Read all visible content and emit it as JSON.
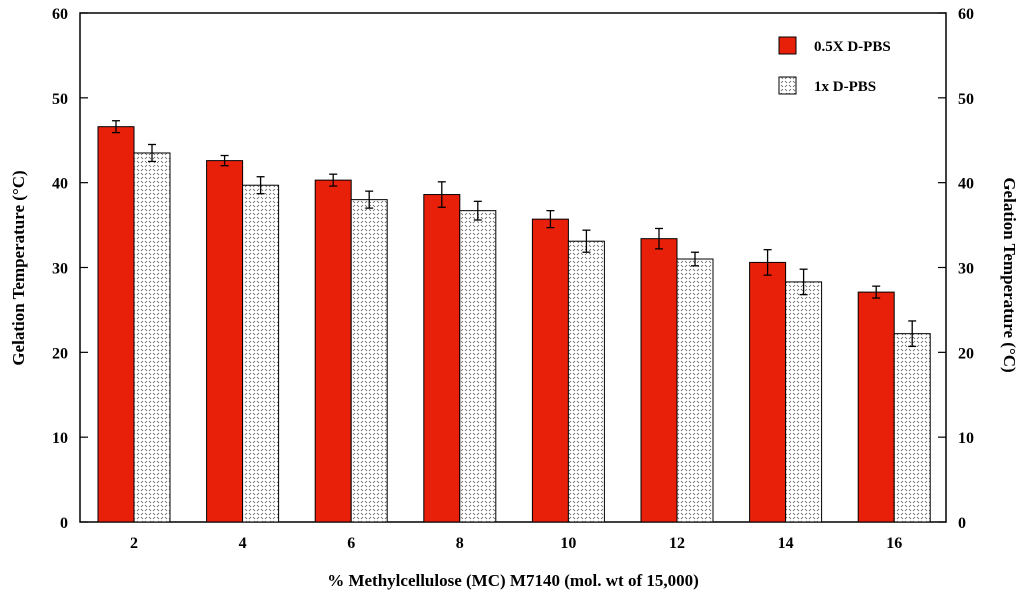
{
  "chart_data": {
    "type": "bar",
    "title": "",
    "xlabel": "% Methylcellulose (MC) M7140 (mol. wt of 15,000)",
    "ylabel": "Gelation Temperature (°C)",
    "ylabel_right": "Gelation Temperature (°C)",
    "ylim": [
      0,
      60
    ],
    "yticks": [
      "0",
      "10",
      "20",
      "30",
      "40",
      "50",
      "60"
    ],
    "categories": [
      "2",
      "4",
      "6",
      "8",
      "10",
      "12",
      "14",
      "16"
    ],
    "legend_position": "top-right",
    "grid": false,
    "series": [
      {
        "name": "0.5X D-PBS",
        "color": "#e8200a",
        "pattern": "solid",
        "values": [
          46.6,
          42.6,
          40.3,
          38.6,
          35.7,
          33.4,
          30.6,
          27.1
        ],
        "errors": [
          0.7,
          0.6,
          0.7,
          1.5,
          1.0,
          1.2,
          1.5,
          0.7
        ]
      },
      {
        "name": "1x D-PBS",
        "color": "#ffffff",
        "pattern": "crosshatch",
        "values": [
          43.5,
          39.7,
          38.0,
          36.7,
          33.1,
          31.0,
          28.3,
          22.2
        ],
        "errors": [
          1.0,
          1.0,
          1.0,
          1.1,
          1.3,
          0.8,
          1.5,
          1.5
        ]
      }
    ]
  }
}
